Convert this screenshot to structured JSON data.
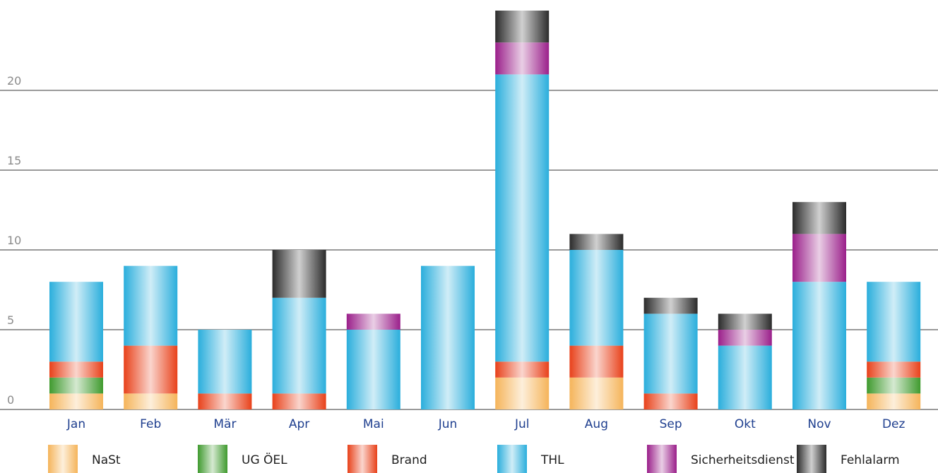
{
  "chart_data": {
    "type": "bar",
    "stacked": true,
    "title": "",
    "xlabel": "",
    "ylabel": "",
    "ylim": [
      0,
      25
    ],
    "yticks": [
      0,
      5,
      10,
      15,
      20
    ],
    "grid": true,
    "legend_position": "bottom",
    "categories": [
      "Jan",
      "Feb",
      "Mär",
      "Apr",
      "Mai",
      "Jun",
      "Jul",
      "Aug",
      "Sep",
      "Okt",
      "Nov",
      "Dez"
    ],
    "series": [
      {
        "name": "NaSt",
        "color": "#f5b45a",
        "values": [
          1,
          1,
          0,
          0,
          0,
          0,
          2,
          2,
          0,
          0,
          0,
          1
        ]
      },
      {
        "name": "UG ÖEL",
        "color": "#3f9a2e",
        "values": [
          1,
          0,
          0,
          0,
          0,
          0,
          0,
          0,
          0,
          0,
          0,
          1
        ]
      },
      {
        "name": "Brand",
        "color": "#e8411a",
        "values": [
          1,
          3,
          1,
          1,
          0,
          0,
          1,
          2,
          1,
          0,
          0,
          1
        ]
      },
      {
        "name": "THL",
        "color": "#2aaedc",
        "values": [
          5,
          5,
          4,
          6,
          5,
          9,
          18,
          6,
          5,
          4,
          8,
          5
        ]
      },
      {
        "name": "Sicherheitsdienst",
        "color": "#9a1f8a",
        "values": [
          0,
          0,
          0,
          0,
          1,
          0,
          2,
          0,
          0,
          1,
          3,
          0
        ]
      },
      {
        "name": "Fehlalarm",
        "color": "#2b2b2b",
        "values": [
          0,
          0,
          0,
          3,
          0,
          0,
          2,
          1,
          1,
          1,
          2,
          0
        ]
      }
    ]
  }
}
